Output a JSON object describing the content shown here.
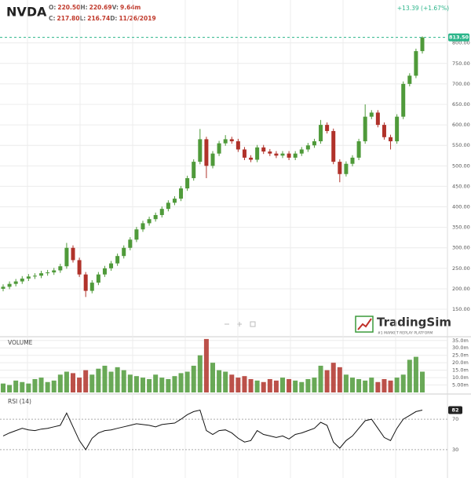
{
  "header": {
    "ticker": "NVDA",
    "quote": [
      [
        {
          "label": "O:",
          "value": "220.50"
        },
        {
          "label": "H:",
          "value": "220.69"
        },
        {
          "label": "V:",
          "value": "9.64m"
        }
      ],
      [
        {
          "label": "C:",
          "value": "217.80"
        },
        {
          "label": "L:",
          "value": "216.74"
        },
        {
          "label": "D:",
          "value": "11/26/2019"
        }
      ]
    ],
    "change": "+13.39 (+1.67%)",
    "logo": {
      "name": "TradingSim",
      "tagline": "#1 MARKET REPLAY PLATFORM"
    }
  },
  "chart_data": [
    {
      "type": "candlestick",
      "up_color": "#4f9a3a",
      "down_color": "#b0322a",
      "open": [
        200,
        205,
        212,
        218,
        225,
        230,
        232,
        238,
        240,
        245,
        255,
        300,
        270,
        235,
        195,
        215,
        235,
        250,
        262,
        280,
        300,
        320,
        345,
        360,
        370,
        380,
        395,
        410,
        420,
        445,
        470,
        510,
        565,
        500,
        530,
        555,
        565,
        560,
        540,
        520,
        515,
        545,
        535,
        530,
        525,
        530,
        520,
        530,
        540,
        550,
        560,
        600,
        585,
        510,
        480,
        505,
        520,
        560,
        620,
        630,
        600,
        570,
        560,
        620,
        700,
        720,
        780
      ],
      "high": [
        211,
        218,
        224,
        231,
        236,
        238,
        244,
        246,
        251,
        261,
        312,
        306,
        276,
        241,
        221,
        241,
        256,
        268,
        286,
        306,
        326,
        351,
        366,
        376,
        386,
        401,
        416,
        426,
        451,
        476,
        516,
        590,
        571,
        536,
        561,
        575,
        571,
        566,
        546,
        526,
        551,
        551,
        541,
        536,
        536,
        536,
        536,
        546,
        556,
        566,
        612,
        606,
        591,
        516,
        511,
        526,
        566,
        650,
        636,
        636,
        606,
        576,
        626,
        706,
        726,
        786,
        816
      ],
      "low": [
        194,
        199,
        206,
        212,
        219,
        224,
        226,
        232,
        234,
        239,
        249,
        264,
        229,
        180,
        189,
        209,
        229,
        244,
        256,
        274,
        294,
        314,
        339,
        354,
        364,
        374,
        389,
        404,
        414,
        439,
        464,
        504,
        470,
        494,
        524,
        549,
        554,
        534,
        514,
        509,
        509,
        529,
        524,
        519,
        519,
        514,
        514,
        524,
        534,
        544,
        554,
        579,
        504,
        460,
        474,
        499,
        514,
        554,
        614,
        594,
        564,
        540,
        554,
        614,
        694,
        714,
        774
      ],
      "close": [
        205,
        212,
        218,
        225,
        230,
        232,
        238,
        240,
        245,
        255,
        300,
        270,
        235,
        195,
        215,
        235,
        250,
        262,
        280,
        300,
        320,
        345,
        360,
        370,
        380,
        395,
        410,
        420,
        445,
        470,
        510,
        565,
        500,
        530,
        555,
        565,
        560,
        540,
        520,
        515,
        545,
        535,
        530,
        525,
        530,
        520,
        530,
        540,
        550,
        560,
        600,
        585,
        510,
        480,
        505,
        520,
        560,
        620,
        630,
        600,
        570,
        560,
        620,
        700,
        720,
        780,
        813.5
      ],
      "last_price": {
        "value": 813.5,
        "label": "813.50"
      },
      "last_color": "#2bb58a",
      "ylim": [
        85,
        876
      ],
      "yticks": [
        {
          "value": 150,
          "label": "150.00"
        },
        {
          "value": 200,
          "label": "200.00"
        },
        {
          "value": 250,
          "label": "250.00"
        },
        {
          "value": 300,
          "label": "300.00"
        },
        {
          "value": 350,
          "label": "350.00"
        },
        {
          "value": 400,
          "label": "400.00"
        },
        {
          "value": 450,
          "label": "450.00"
        },
        {
          "value": 500,
          "label": "500.00"
        },
        {
          "value": 550,
          "label": "550.00"
        },
        {
          "value": 600,
          "label": "600.00"
        },
        {
          "value": 650,
          "label": "650.00"
        },
        {
          "value": 700,
          "label": "700.00"
        },
        {
          "value": 750,
          "label": "750.00"
        },
        {
          "value": 800,
          "label": "800.00"
        }
      ],
      "grid": true
    },
    {
      "type": "bar",
      "title": "VOLUME",
      "values": [
        6,
        5,
        8,
        7,
        6,
        9,
        10,
        7,
        8,
        12,
        14,
        13,
        10,
        15,
        12,
        16,
        18,
        14,
        17,
        15,
        12,
        11,
        10,
        9,
        12,
        10,
        9,
        11,
        13,
        14,
        18,
        25,
        36,
        20,
        15,
        14,
        12,
        10,
        11,
        9,
        8,
        7,
        9,
        8,
        10,
        9,
        8,
        7,
        9,
        10,
        18,
        15,
        20,
        17,
        12,
        10,
        9,
        8,
        10,
        7,
        9,
        8,
        10,
        12,
        22,
        24,
        14
      ],
      "ylim": [
        0,
        37
      ],
      "yticks": [
        {
          "value": 35,
          "label": "35.0m"
        },
        {
          "value": 30,
          "label": "30.0m"
        },
        {
          "value": 25,
          "label": "25.0m"
        },
        {
          "value": 20,
          "label": "20.0m"
        },
        {
          "value": 15,
          "label": "15.0m"
        },
        {
          "value": 10,
          "label": "10.0m"
        },
        {
          "value": 5,
          "label": "5.00m"
        }
      ],
      "grid": true
    },
    {
      "type": "line",
      "title": "RSI (14)",
      "color": "#111111",
      "values": [
        48,
        52,
        55,
        58,
        56,
        55,
        57,
        58,
        60,
        62,
        78,
        60,
        42,
        30,
        45,
        52,
        55,
        56,
        58,
        60,
        62,
        64,
        63,
        62,
        60,
        63,
        64,
        65,
        70,
        76,
        80,
        82,
        55,
        50,
        55,
        56,
        52,
        45,
        40,
        42,
        55,
        50,
        48,
        46,
        48,
        44,
        50,
        52,
        55,
        58,
        66,
        62,
        40,
        32,
        42,
        48,
        58,
        68,
        70,
        58,
        46,
        42,
        58,
        70,
        75,
        80,
        82
      ],
      "ylim": [
        0,
        100
      ],
      "yticks": [
        30,
        70
      ],
      "grid": true
    }
  ]
}
